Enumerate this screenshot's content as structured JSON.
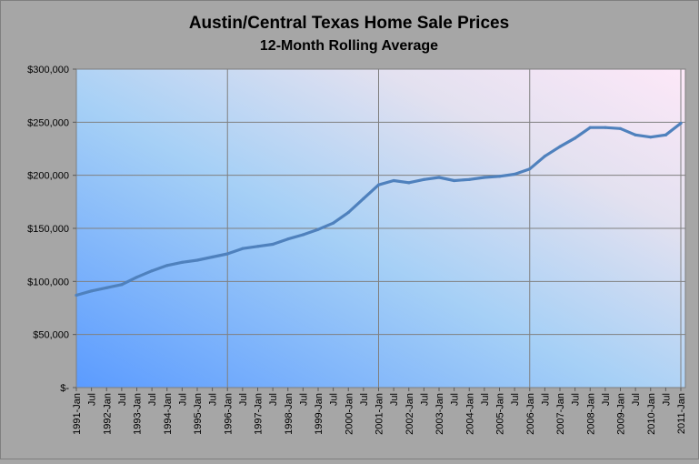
{
  "chart_data": {
    "type": "line",
    "title": "Austin/Central Texas Home Sale Prices",
    "subtitle": "12-Month Rolling Average",
    "xlabel": "",
    "ylabel": "",
    "ylim": [
      0,
      300000
    ],
    "y_ticks": [
      0,
      50000,
      100000,
      150000,
      200000,
      250000,
      300000
    ],
    "y_tick_labels": [
      "$-",
      "$50,000",
      "$100,000",
      "$150,000",
      "$200,000",
      "$250,000",
      "$300,000"
    ],
    "x_tick_labels": [
      "1991-Jan",
      "Jul",
      "1992-Jan",
      "Jul",
      "1993-Jan",
      "Jul",
      "1994-Jan",
      "Jul",
      "1995-Jan",
      "Jul",
      "1996-Jan",
      "Jul",
      "1997-Jan",
      "Jul",
      "1998-Jan",
      "Jul",
      "1999-Jan",
      "Jul",
      "2000-Jan",
      "Jul",
      "2001-Jan",
      "Jul",
      "2002-Jan",
      "Jul",
      "2003-Jan",
      "Jul",
      "2004-Jan",
      "Jul",
      "2005-Jan",
      "Jul",
      "2006-Jan",
      "Jul",
      "2007-Jan",
      "Jul",
      "2008-Jan",
      "Jul",
      "2009-Jan",
      "Jul",
      "2010-Jan",
      "Jul",
      "2011-Jan"
    ],
    "grid": true,
    "legend": "none",
    "colors": {
      "line": "#4f81bd",
      "outer_bg": "#a6a6a6",
      "grid": "#808080"
    },
    "series": [
      {
        "x": [
          "1991-Jan",
          "1991-Jul",
          "1992-Jan",
          "1992-Jul",
          "1993-Jan",
          "1993-Jul",
          "1994-Jan",
          "1994-Jul",
          "1995-Jan",
          "1995-Jul",
          "1996-Jan",
          "1996-Jul",
          "1997-Jan",
          "1997-Jul",
          "1998-Jan",
          "1998-Jul",
          "1999-Jan",
          "1999-Jul",
          "2000-Jan",
          "2000-Jul",
          "2001-Jan",
          "2001-Jul",
          "2002-Jan",
          "2002-Jul",
          "2003-Jan",
          "2003-Jul",
          "2004-Jan",
          "2004-Jul",
          "2005-Jan",
          "2005-Jul",
          "2006-Jan",
          "2006-Jul",
          "2007-Jan",
          "2007-Jul",
          "2008-Jan",
          "2008-Jul",
          "2009-Jan",
          "2009-Jul",
          "2010-Jan",
          "2010-Jul",
          "2011-Jan"
        ],
        "values": [
          87000,
          91000,
          94000,
          97000,
          104000,
          110000,
          115000,
          118000,
          120000,
          123000,
          126000,
          131000,
          133000,
          135000,
          140000,
          144000,
          149000,
          155000,
          165000,
          178000,
          191000,
          195000,
          193000,
          196000,
          198000,
          195000,
          196000,
          198000,
          199000,
          201000,
          206000,
          218000,
          227000,
          235000,
          245000,
          245000,
          244000,
          238000,
          236000,
          238000,
          249000
        ]
      }
    ]
  }
}
